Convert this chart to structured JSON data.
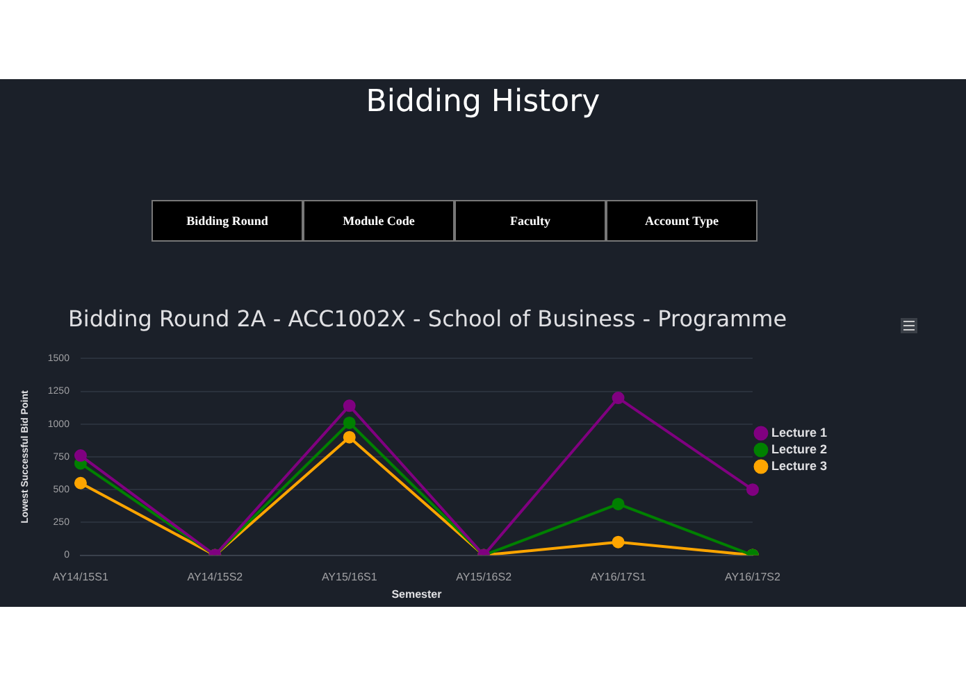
{
  "chart_data": {
    "type": "line",
    "title": "Bidding History",
    "subtitle": "Bidding Round 2A - ACC1002X - School of Business - Programme",
    "xlabel": "Semester",
    "ylabel": "Lowest Successful Bid Point",
    "annotations": [
      "Bidding Round",
      "Module Code",
      "Faculty",
      "Account Type"
    ],
    "categories": [
      "AY14/15S1",
      "AY14/15S2",
      "AY15/16S1",
      "AY15/16S2",
      "AY16/17S1",
      "AY16/17S2"
    ],
    "series": [
      {
        "name": "Lecture 1",
        "color": "#800080",
        "values": [
          760,
          0,
          1140,
          0,
          1200,
          500
        ]
      },
      {
        "name": "Lecture 2",
        "color": "#008000",
        "values": [
          700,
          0,
          1010,
          0,
          390,
          0
        ]
      },
      {
        "name": "Lecture 3",
        "color": "#ffa500",
        "values": [
          550,
          0,
          900,
          0,
          100,
          0
        ]
      }
    ],
    "ylim": [
      0,
      1500
    ],
    "yticks": [
      0,
      250,
      500,
      750,
      1000,
      1250,
      1500
    ],
    "grid": "y",
    "legend": "right",
    "marker": "circle"
  }
}
